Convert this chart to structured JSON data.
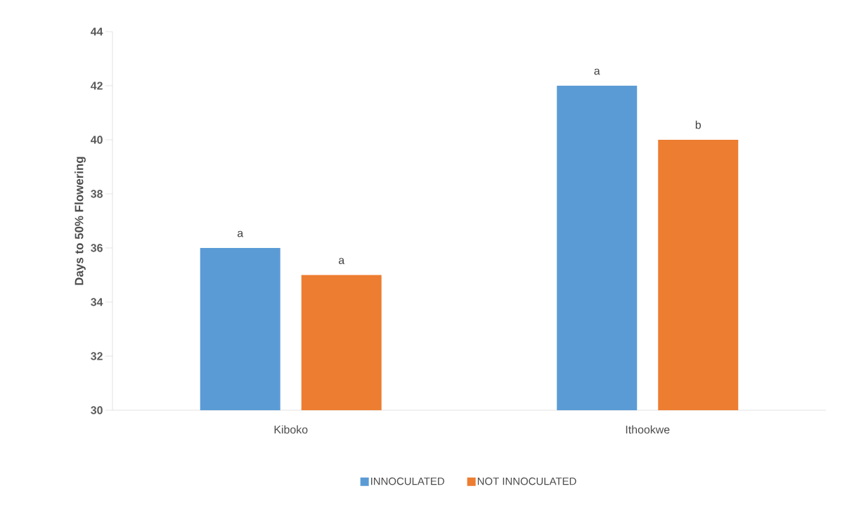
{
  "chart_data": {
    "type": "bar",
    "ylabel": "Days to 50% Flowering",
    "categories": [
      "Kiboko",
      "Ithookwe"
    ],
    "series": [
      {
        "name": "INNOCULATED",
        "color": "#5b9bd5",
        "values": [
          36,
          42
        ],
        "value_labels": [
          "a",
          "a"
        ]
      },
      {
        "name": "NOT INNOCULATED",
        "color": "#ed7d31",
        "values": [
          35,
          40
        ],
        "value_labels": [
          "a",
          "b"
        ]
      }
    ],
    "ylim": [
      30,
      44
    ],
    "yticks": [
      30,
      32,
      34,
      36,
      38,
      40,
      42,
      44
    ],
    "legend": "bottom"
  }
}
